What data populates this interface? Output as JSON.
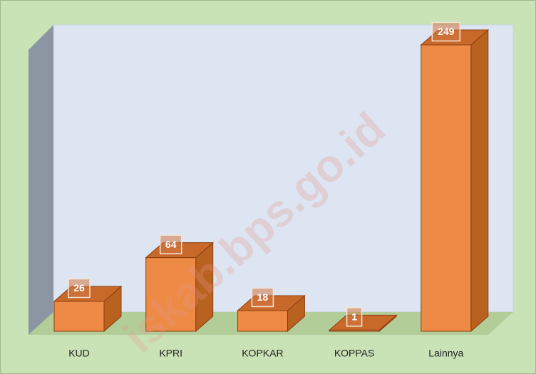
{
  "chart_data": {
    "type": "bar3d",
    "categories": [
      "KUD",
      "KPRI",
      "KOPKAR",
      "KOPPAS",
      "Lainnya"
    ],
    "values": [
      26,
      64,
      18,
      1,
      249
    ],
    "color": "#ed8a45",
    "watermark": "iskab.bps.go.id"
  }
}
